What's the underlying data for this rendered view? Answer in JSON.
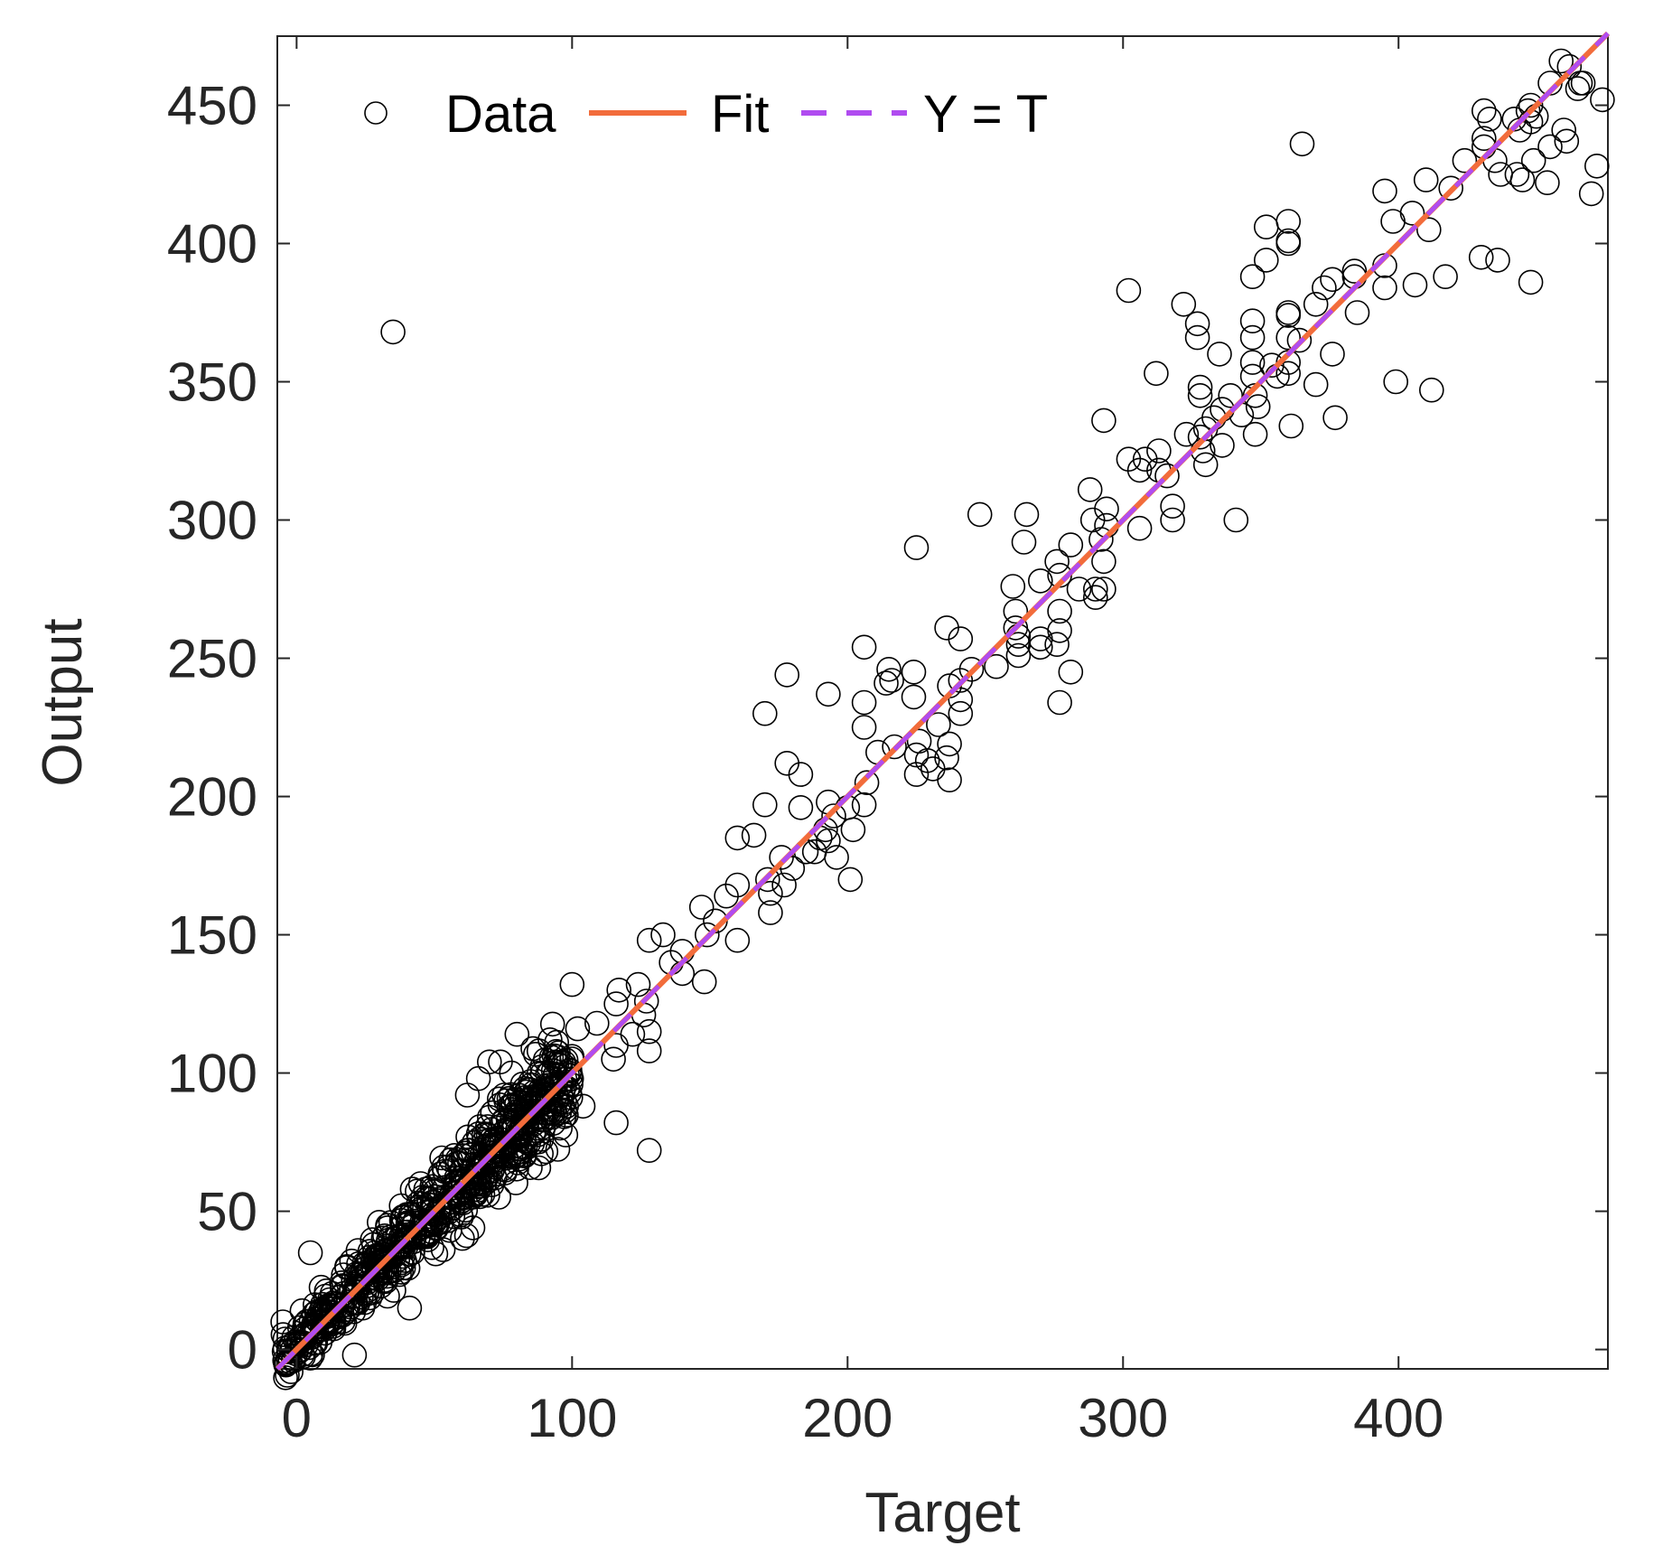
{
  "chart_data": {
    "type": "scatter",
    "xlabel": "Target",
    "ylabel": "Output",
    "xlim": [
      -7,
      476
    ],
    "ylim": [
      -7,
      475
    ],
    "xticks": [
      0,
      100,
      200,
      300,
      400
    ],
    "yticks": [
      0,
      50,
      100,
      150,
      200,
      250,
      300,
      350,
      400,
      450
    ],
    "grid": false,
    "legend": {
      "position": "top-left",
      "entries": [
        {
          "label": "Data",
          "marker": "open-circle",
          "color": "#000000"
        },
        {
          "label": "Fit",
          "line": "solid",
          "color": "#f26c3b"
        },
        {
          "label": "Y = T",
          "line": "dashed",
          "color": "#b04cf0"
        }
      ]
    },
    "fit": {
      "slope": 1.0,
      "intercept": 0.0,
      "x_range": [
        -7,
        476
      ]
    },
    "identity": {
      "slope": 1.0,
      "intercept": 0.0,
      "x_range": [
        -7,
        476
      ]
    },
    "series": [
      {
        "name": "Data",
        "points": [
          [
            35,
            368
          ],
          [
            5,
            35
          ],
          [
            21,
            -2
          ],
          [
            41,
            15
          ],
          [
            -5,
            10
          ],
          [
            2,
            14
          ],
          [
            8,
            10
          ],
          [
            12,
            18
          ],
          [
            17,
            27
          ],
          [
            20,
            32
          ],
          [
            24,
            15
          ],
          [
            28,
            38
          ],
          [
            30,
            46
          ],
          [
            33,
            44
          ],
          [
            38,
            28
          ],
          [
            42,
            58
          ],
          [
            45,
            60
          ],
          [
            48,
            42
          ],
          [
            52,
            48
          ],
          [
            55,
            66
          ],
          [
            58,
            62
          ],
          [
            60,
            55
          ],
          [
            62,
            72
          ],
          [
            64,
            44
          ],
          [
            66,
            78
          ],
          [
            68,
            68
          ],
          [
            70,
            84
          ],
          [
            72,
            62
          ],
          [
            74,
            76
          ],
          [
            76,
            90
          ],
          [
            78,
            82
          ],
          [
            80,
            70
          ],
          [
            82,
            96
          ],
          [
            84,
            88
          ],
          [
            86,
            78
          ],
          [
            88,
            100
          ],
          [
            90,
            94
          ],
          [
            92,
            86
          ],
          [
            94,
            104
          ],
          [
            96,
            92
          ],
          [
            62,
            92
          ],
          [
            66,
            98
          ],
          [
            70,
            104
          ],
          [
            74,
            104
          ],
          [
            78,
            100
          ],
          [
            80,
            114
          ],
          [
            84,
            94
          ],
          [
            88,
            108
          ],
          [
            92,
            112
          ],
          [
            96,
            96
          ],
          [
            98,
            88
          ],
          [
            100,
            106
          ],
          [
            102,
            116
          ],
          [
            104,
            88
          ],
          [
            100,
            132
          ],
          [
            109,
            118
          ],
          [
            115,
            105
          ],
          [
            116,
            110
          ],
          [
            116,
            125
          ],
          [
            117,
            130
          ],
          [
            116,
            82
          ],
          [
            122,
            114
          ],
          [
            124,
            132
          ],
          [
            127,
            126
          ],
          [
            128,
            148
          ],
          [
            128,
            115
          ],
          [
            126,
            121
          ],
          [
            128,
            108
          ],
          [
            128,
            72
          ],
          [
            133,
            150
          ],
          [
            136,
            140
          ],
          [
            140,
            136
          ],
          [
            140,
            144
          ],
          [
            147,
            160
          ],
          [
            148,
            133
          ],
          [
            149,
            150
          ],
          [
            152,
            155
          ],
          [
            156,
            164
          ],
          [
            160,
            168
          ],
          [
            160,
            185
          ],
          [
            160,
            148
          ],
          [
            166,
            186
          ],
          [
            170,
            230
          ],
          [
            170,
            197
          ],
          [
            171,
            170
          ],
          [
            172,
            165
          ],
          [
            172,
            158
          ],
          [
            176,
            178
          ],
          [
            177,
            168
          ],
          [
            178,
            244
          ],
          [
            178,
            212
          ],
          [
            180,
            174
          ],
          [
            183,
            208
          ],
          [
            183,
            196
          ],
          [
            185,
            180
          ],
          [
            188,
            180
          ],
          [
            190,
            185
          ],
          [
            192,
            188
          ],
          [
            193,
            237
          ],
          [
            193,
            184
          ],
          [
            193,
            198
          ],
          [
            195,
            193
          ],
          [
            196,
            178
          ],
          [
            200,
            196
          ],
          [
            201,
            170
          ],
          [
            202,
            188
          ],
          [
            206,
            197
          ],
          [
            206,
            254
          ],
          [
            206,
            234
          ],
          [
            206,
            225
          ],
          [
            207,
            205
          ],
          [
            211,
            216
          ],
          [
            214,
            241
          ],
          [
            215,
            246
          ],
          [
            216,
            242
          ],
          [
            217,
            218
          ],
          [
            224,
            245
          ],
          [
            224,
            236
          ],
          [
            225,
            215
          ],
          [
            225,
            208
          ],
          [
            225,
            290
          ],
          [
            226,
            220
          ],
          [
            229,
            213
          ],
          [
            231,
            210
          ],
          [
            233,
            226
          ],
          [
            236,
            261
          ],
          [
            237,
            240
          ],
          [
            237,
            219
          ],
          [
            236,
            214
          ],
          [
            237,
            206
          ],
          [
            241,
            257
          ],
          [
            241,
            242
          ],
          [
            241,
            235
          ],
          [
            241,
            230
          ],
          [
            245,
            246
          ],
          [
            248,
            302
          ],
          [
            254,
            247
          ],
          [
            260,
            276
          ],
          [
            261,
            267
          ],
          [
            261,
            261
          ],
          [
            262,
            258
          ],
          [
            262,
            255
          ],
          [
            262,
            251
          ],
          [
            264,
            292
          ],
          [
            265,
            302
          ],
          [
            270,
            278
          ],
          [
            270,
            257
          ],
          [
            270,
            254
          ],
          [
            276,
            285
          ],
          [
            277,
            280
          ],
          [
            277,
            267
          ],
          [
            277,
            234
          ],
          [
            276,
            255
          ],
          [
            277,
            260
          ],
          [
            281,
            245
          ],
          [
            281,
            291
          ],
          [
            284,
            275
          ],
          [
            288,
            311
          ],
          [
            289,
            300
          ],
          [
            290,
            275
          ],
          [
            290,
            272
          ],
          [
            292,
            293
          ],
          [
            293,
            285
          ],
          [
            293,
            275
          ],
          [
            293,
            336
          ],
          [
            294,
            304
          ],
          [
            294,
            298
          ],
          [
            302,
            383
          ],
          [
            302,
            322
          ],
          [
            306,
            318
          ],
          [
            306,
            297
          ],
          [
            308,
            322
          ],
          [
            312,
            353
          ],
          [
            313,
            318
          ],
          [
            313,
            325
          ],
          [
            316,
            316
          ],
          [
            318,
            305
          ],
          [
            318,
            300
          ],
          [
            322,
            378
          ],
          [
            323,
            331
          ],
          [
            327,
            371
          ],
          [
            327,
            366
          ],
          [
            328,
            345
          ],
          [
            328,
            348
          ],
          [
            328,
            330
          ],
          [
            329,
            325
          ],
          [
            330,
            320
          ],
          [
            330,
            333
          ],
          [
            333,
            337
          ],
          [
            335,
            360
          ],
          [
            336,
            327
          ],
          [
            336,
            340
          ],
          [
            339,
            345
          ],
          [
            341,
            300
          ],
          [
            343,
            338
          ],
          [
            347,
            388
          ],
          [
            347,
            372
          ],
          [
            347,
            366
          ],
          [
            347,
            357
          ],
          [
            347,
            352
          ],
          [
            348,
            345
          ],
          [
            349,
            341
          ],
          [
            348,
            331
          ],
          [
            352,
            406
          ],
          [
            352,
            394
          ],
          [
            354,
            356
          ],
          [
            356,
            352
          ],
          [
            360,
            408
          ],
          [
            360,
            401
          ],
          [
            360,
            400
          ],
          [
            360,
            375
          ],
          [
            360,
            374
          ],
          [
            360,
            366
          ],
          [
            360,
            357
          ],
          [
            360,
            353
          ],
          [
            361,
            334
          ],
          [
            364,
            365
          ],
          [
            365,
            436
          ],
          [
            370,
            378
          ],
          [
            370,
            349
          ],
          [
            373,
            384
          ],
          [
            376,
            387
          ],
          [
            376,
            360
          ],
          [
            377,
            337
          ],
          [
            384,
            390
          ],
          [
            384,
            388
          ],
          [
            385,
            375
          ],
          [
            395,
            419
          ],
          [
            395,
            392
          ],
          [
            395,
            384
          ],
          [
            398,
            408
          ],
          [
            399,
            350
          ],
          [
            405,
            411
          ],
          [
            406,
            385
          ],
          [
            410,
            423
          ],
          [
            411,
            405
          ],
          [
            412,
            347
          ],
          [
            417,
            388
          ],
          [
            419,
            420
          ],
          [
            424,
            430
          ],
          [
            430,
            395
          ],
          [
            431,
            448
          ],
          [
            431,
            438
          ],
          [
            431,
            435
          ],
          [
            433,
            445
          ],
          [
            435,
            430
          ],
          [
            436,
            394
          ],
          [
            437,
            425
          ],
          [
            442,
            445
          ],
          [
            443,
            425
          ],
          [
            444,
            441
          ],
          [
            445,
            423
          ],
          [
            447,
            448
          ],
          [
            448,
            444
          ],
          [
            448,
            450
          ],
          [
            449,
            430
          ],
          [
            448,
            386
          ],
          [
            450,
            446
          ],
          [
            454,
            422
          ],
          [
            455,
            435
          ],
          [
            455,
            458
          ],
          [
            459,
            466
          ],
          [
            460,
            441
          ],
          [
            461,
            437
          ],
          [
            462,
            464
          ],
          [
            465,
            456
          ],
          [
            467,
            458
          ],
          [
            470,
            418
          ],
          [
            472,
            428
          ],
          [
            474,
            452
          ],
          [
            466,
            458
          ]
        ],
        "cluster": {
          "name": "Data",
          "description_excluded": true,
          "x_center_range": [
            -5,
            100
          ],
          "count": 650
        }
      }
    ]
  }
}
